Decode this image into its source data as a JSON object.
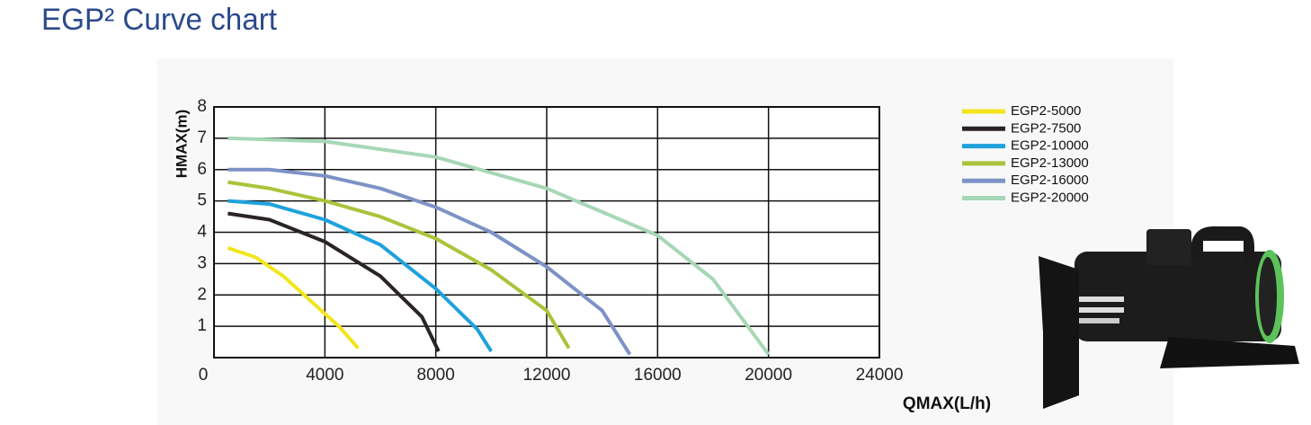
{
  "chart_data": {
    "type": "line",
    "title": "EGP² Curve chart",
    "x_label": "QMAX(L/h)",
    "y_label": "HMAX(m)",
    "xlim": [
      0,
      24000
    ],
    "xticks": [
      0,
      4000,
      8000,
      12000,
      16000,
      20000,
      24000
    ],
    "ylim": [
      0,
      8
    ],
    "yticks": [
      1,
      2,
      3,
      4,
      5,
      6,
      7,
      8
    ],
    "grid": true,
    "series": [
      {
        "name": "EGP2-5000",
        "color": "#f2e51c",
        "x": [
          500,
          1500,
          2500,
          3500,
          4500,
          5200
        ],
        "values": [
          3.5,
          3.2,
          2.6,
          1.8,
          1.0,
          0.3
        ]
      },
      {
        "name": "EGP2-7500",
        "color": "#2a2424",
        "x": [
          500,
          2000,
          4000,
          6000,
          7500,
          8100
        ],
        "values": [
          4.6,
          4.4,
          3.7,
          2.6,
          1.3,
          0.2
        ]
      },
      {
        "name": "EGP2-10000",
        "color": "#1ea2dc",
        "x": [
          500,
          2000,
          4000,
          6000,
          8000,
          9500,
          10000
        ],
        "values": [
          5.0,
          4.9,
          4.4,
          3.6,
          2.2,
          0.9,
          0.2
        ]
      },
      {
        "name": "EGP2-13000",
        "color": "#a9c43a",
        "x": [
          500,
          2000,
          4000,
          6000,
          8000,
          10000,
          12000,
          12800
        ],
        "values": [
          5.6,
          5.4,
          5.0,
          4.5,
          3.8,
          2.8,
          1.5,
          0.3
        ]
      },
      {
        "name": "EGP2-16000",
        "color": "#7d92c6",
        "x": [
          500,
          2000,
          4000,
          6000,
          8000,
          10000,
          12000,
          14000,
          15000
        ],
        "values": [
          6.0,
          6.0,
          5.8,
          5.4,
          4.8,
          4.0,
          2.9,
          1.5,
          0.1
        ]
      },
      {
        "name": "EGP2-20000",
        "color": "#a6d7b6",
        "x": [
          500,
          4000,
          8000,
          12000,
          16000,
          18000,
          19500,
          20000
        ],
        "values": [
          7.0,
          6.9,
          6.4,
          5.4,
          3.9,
          2.5,
          0.7,
          0.1
        ]
      }
    ]
  }
}
